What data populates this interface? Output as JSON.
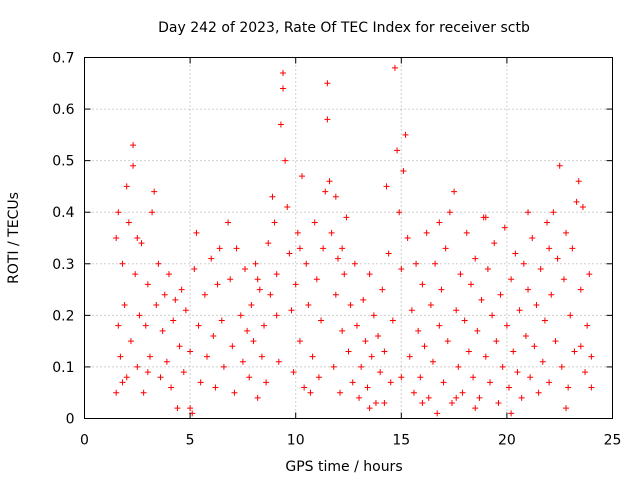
{
  "chart_data": {
    "type": "scatter",
    "title": "Day 242 of 2023, Rate Of TEC Index for receiver sctb",
    "xlabel": "GPS time / hours",
    "ylabel": "ROTI / TECUs",
    "xlim": [
      0,
      25
    ],
    "ylim": [
      0,
      0.7
    ],
    "xticks": [
      0,
      5,
      10,
      15,
      20,
      25
    ],
    "yticks": [
      0,
      0.1,
      0.2,
      0.3,
      0.4,
      0.5,
      0.6,
      0.7
    ],
    "xtick_labels": [
      "0",
      "5",
      "10",
      "15",
      "20",
      "25"
    ],
    "ytick_labels": [
      "0",
      "0.1",
      "0.2",
      "0.3",
      "0.4",
      "0.5",
      "0.6",
      "0.7"
    ],
    "grid": true,
    "marker": "+",
    "color": "#ff0000",
    "series": [
      {
        "name": "",
        "points": [
          [
            1.5,
            0.05
          ],
          [
            1.5,
            0.35
          ],
          [
            1.6,
            0.4
          ],
          [
            1.7,
            0.12
          ],
          [
            1.8,
            0.3
          ],
          [
            1.9,
            0.22
          ],
          [
            2.0,
            0.45
          ],
          [
            2.0,
            0.08
          ],
          [
            2.1,
            0.38
          ],
          [
            2.2,
            0.15
          ],
          [
            2.3,
            0.49
          ],
          [
            2.3,
            0.53
          ],
          [
            2.4,
            0.28
          ],
          [
            2.5,
            0.1
          ],
          [
            2.6,
            0.2
          ],
          [
            2.7,
            0.34
          ],
          [
            2.8,
            0.05
          ],
          [
            2.9,
            0.18
          ],
          [
            3.0,
            0.26
          ],
          [
            3.1,
            0.12
          ],
          [
            3.2,
            0.4
          ],
          [
            3.3,
            0.44
          ],
          [
            3.4,
            0.22
          ],
          [
            3.5,
            0.3
          ],
          [
            3.6,
            0.08
          ],
          [
            3.7,
            0.17
          ],
          [
            3.8,
            0.24
          ],
          [
            3.9,
            0.11
          ],
          [
            4.0,
            0.28
          ],
          [
            4.1,
            0.06
          ],
          [
            4.2,
            0.19
          ],
          [
            4.3,
            0.23
          ],
          [
            4.5,
            0.14
          ],
          [
            4.6,
            0.25
          ],
          [
            4.7,
            0.09
          ],
          [
            4.8,
            0.21
          ],
          [
            5.0,
            0.02
          ],
          [
            5.0,
            0.13
          ],
          [
            5.2,
            0.29
          ],
          [
            5.3,
            0.36
          ],
          [
            5.4,
            0.18
          ],
          [
            5.5,
            0.07
          ],
          [
            5.7,
            0.24
          ],
          [
            5.8,
            0.12
          ],
          [
            6.0,
            0.31
          ],
          [
            6.1,
            0.16
          ],
          [
            6.2,
            0.06
          ],
          [
            6.3,
            0.26
          ],
          [
            6.5,
            0.19
          ],
          [
            6.6,
            0.1
          ],
          [
            6.8,
            0.38
          ],
          [
            6.9,
            0.27
          ],
          [
            7.0,
            0.14
          ],
          [
            7.1,
            0.05
          ],
          [
            7.2,
            0.33
          ],
          [
            7.4,
            0.2
          ],
          [
            7.5,
            0.11
          ],
          [
            7.6,
            0.29
          ],
          [
            7.8,
            0.08
          ],
          [
            7.9,
            0.22
          ],
          [
            8.0,
            0.15
          ],
          [
            8.1,
            0.3
          ],
          [
            8.2,
            0.04
          ],
          [
            8.3,
            0.25
          ],
          [
            8.4,
            0.12
          ],
          [
            8.5,
            0.18
          ],
          [
            8.6,
            0.07
          ],
          [
            8.7,
            0.34
          ],
          [
            8.8,
            0.24
          ],
          [
            8.9,
            0.43
          ],
          [
            9.0,
            0.38
          ],
          [
            9.1,
            0.28
          ],
          [
            9.2,
            0.11
          ],
          [
            9.3,
            0.57
          ],
          [
            9.4,
            0.67
          ],
          [
            9.4,
            0.64
          ],
          [
            9.5,
            0.5
          ],
          [
            9.6,
            0.41
          ],
          [
            9.7,
            0.32
          ],
          [
            9.8,
            0.21
          ],
          [
            9.9,
            0.09
          ],
          [
            10.0,
            0.26
          ],
          [
            10.1,
            0.36
          ],
          [
            10.2,
            0.15
          ],
          [
            10.3,
            0.47
          ],
          [
            10.4,
            0.06
          ],
          [
            10.5,
            0.3
          ],
          [
            10.6,
            0.22
          ],
          [
            10.8,
            0.12
          ],
          [
            10.9,
            0.38
          ],
          [
            11.0,
            0.27
          ],
          [
            11.1,
            0.08
          ],
          [
            11.2,
            0.19
          ],
          [
            11.3,
            0.33
          ],
          [
            11.4,
            0.44
          ],
          [
            11.5,
            0.58
          ],
          [
            11.5,
            0.65
          ],
          [
            11.6,
            0.46
          ],
          [
            11.7,
            0.36
          ],
          [
            11.8,
            0.1
          ],
          [
            11.9,
            0.24
          ],
          [
            12.0,
            0.31
          ],
          [
            12.1,
            0.05
          ],
          [
            12.2,
            0.17
          ],
          [
            12.3,
            0.28
          ],
          [
            12.4,
            0.39
          ],
          [
            12.5,
            0.13
          ],
          [
            12.6,
            0.22
          ],
          [
            12.7,
            0.07
          ],
          [
            12.8,
            0.3
          ],
          [
            12.9,
            0.18
          ],
          [
            13.0,
            0.04
          ],
          [
            13.1,
            0.1
          ],
          [
            13.2,
            0.23
          ],
          [
            13.3,
            0.15
          ],
          [
            13.4,
            0.06
          ],
          [
            13.5,
            0.28
          ],
          [
            13.6,
            0.12
          ],
          [
            13.7,
            0.2
          ],
          [
            13.8,
            0.03
          ],
          [
            13.9,
            0.16
          ],
          [
            14.0,
            0.09
          ],
          [
            14.1,
            0.25
          ],
          [
            14.2,
            0.13
          ],
          [
            14.3,
            0.45
          ],
          [
            14.4,
            0.32
          ],
          [
            14.5,
            0.07
          ],
          [
            14.6,
            0.19
          ],
          [
            14.7,
            0.68
          ],
          [
            14.8,
            0.52
          ],
          [
            14.9,
            0.4
          ],
          [
            15.0,
            0.29
          ],
          [
            15.1,
            0.48
          ],
          [
            15.2,
            0.55
          ],
          [
            15.3,
            0.35
          ],
          [
            15.4,
            0.12
          ],
          [
            15.5,
            0.21
          ],
          [
            15.6,
            0.05
          ],
          [
            15.7,
            0.3
          ],
          [
            15.8,
            0.17
          ],
          [
            15.9,
            0.08
          ],
          [
            16.0,
            0.26
          ],
          [
            16.1,
            0.14
          ],
          [
            16.2,
            0.36
          ],
          [
            16.3,
            0.04
          ],
          [
            16.4,
            0.22
          ],
          [
            16.5,
            0.11
          ],
          [
            16.6,
            0.3
          ],
          [
            16.7,
            0.01
          ],
          [
            16.8,
            0.18
          ],
          [
            16.9,
            0.25
          ],
          [
            17.0,
            0.07
          ],
          [
            17.1,
            0.33
          ],
          [
            17.2,
            0.15
          ],
          [
            17.3,
            0.4
          ],
          [
            17.4,
            0.03
          ],
          [
            17.5,
            0.44
          ],
          [
            17.6,
            0.21
          ],
          [
            17.7,
            0.1
          ],
          [
            17.8,
            0.28
          ],
          [
            17.9,
            0.05
          ],
          [
            18.0,
            0.19
          ],
          [
            18.1,
            0.36
          ],
          [
            18.2,
            0.13
          ],
          [
            18.3,
            0.26
          ],
          [
            18.4,
            0.08
          ],
          [
            18.5,
            0.31
          ],
          [
            18.6,
            0.17
          ],
          [
            18.7,
            0.04
          ],
          [
            18.8,
            0.23
          ],
          [
            18.9,
            0.39
          ],
          [
            19.0,
            0.12
          ],
          [
            19.1,
            0.29
          ],
          [
            19.2,
            0.07
          ],
          [
            19.3,
            0.2
          ],
          [
            19.4,
            0.34
          ],
          [
            19.5,
            0.15
          ],
          [
            19.6,
            0.03
          ],
          [
            19.7,
            0.24
          ],
          [
            19.8,
            0.1
          ],
          [
            19.9,
            0.37
          ],
          [
            20.0,
            0.18
          ],
          [
            20.1,
            0.06
          ],
          [
            20.2,
            0.27
          ],
          [
            20.3,
            0.13
          ],
          [
            20.4,
            0.32
          ],
          [
            20.5,
            0.09
          ],
          [
            20.6,
            0.21
          ],
          [
            20.7,
            0.04
          ],
          [
            20.8,
            0.3
          ],
          [
            20.9,
            0.16
          ],
          [
            21.0,
            0.25
          ],
          [
            21.1,
            0.08
          ],
          [
            21.2,
            0.35
          ],
          [
            21.3,
            0.14
          ],
          [
            21.4,
            0.22
          ],
          [
            21.5,
            0.05
          ],
          [
            21.6,
            0.29
          ],
          [
            21.7,
            0.11
          ],
          [
            21.8,
            0.19
          ],
          [
            21.9,
            0.38
          ],
          [
            22.0,
            0.07
          ],
          [
            22.1,
            0.24
          ],
          [
            22.2,
            0.4
          ],
          [
            22.3,
            0.15
          ],
          [
            22.4,
            0.31
          ],
          [
            22.5,
            0.49
          ],
          [
            22.6,
            0.1
          ],
          [
            22.7,
            0.27
          ],
          [
            22.8,
            0.36
          ],
          [
            22.9,
            0.06
          ],
          [
            23.0,
            0.2
          ],
          [
            23.1,
            0.33
          ],
          [
            23.2,
            0.13
          ],
          [
            23.3,
            0.42
          ],
          [
            23.4,
            0.46
          ],
          [
            23.5,
            0.25
          ],
          [
            23.6,
            0.41
          ],
          [
            23.7,
            0.09
          ],
          [
            23.8,
            0.18
          ],
          [
            23.9,
            0.28
          ],
          [
            24.0,
            0.12
          ],
          [
            24.0,
            0.06
          ],
          [
            1.6,
            0.18
          ],
          [
            1.8,
            0.07
          ],
          [
            2.5,
            0.35
          ],
          [
            3.0,
            0.09
          ],
          [
            4.4,
            0.02
          ],
          [
            5.1,
            0.01
          ],
          [
            6.4,
            0.33
          ],
          [
            7.7,
            0.17
          ],
          [
            8.2,
            0.27
          ],
          [
            9.1,
            0.2
          ],
          [
            10.2,
            0.33
          ],
          [
            10.7,
            0.05
          ],
          [
            11.9,
            0.43
          ],
          [
            12.2,
            0.33
          ],
          [
            13.5,
            0.02
          ],
          [
            14.2,
            0.03
          ],
          [
            15.0,
            0.08
          ],
          [
            16.0,
            0.03
          ],
          [
            16.8,
            0.38
          ],
          [
            17.6,
            0.04
          ],
          [
            18.5,
            0.02
          ],
          [
            19.0,
            0.39
          ],
          [
            20.2,
            0.01
          ],
          [
            21.0,
            0.4
          ],
          [
            22.0,
            0.33
          ],
          [
            22.8,
            0.02
          ],
          [
            23.5,
            0.14
          ]
        ]
      }
    ]
  }
}
